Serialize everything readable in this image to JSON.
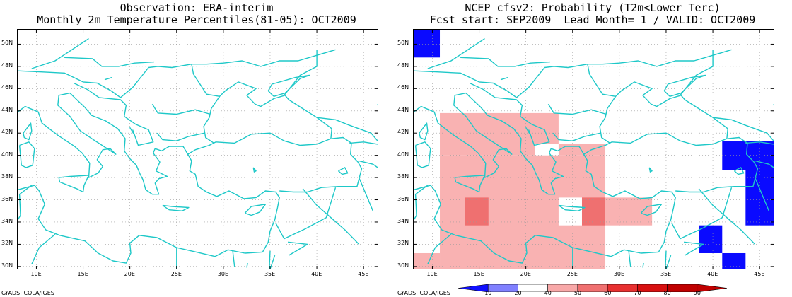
{
  "left_panel": {
    "title_line1": "Observation: ERA-interim",
    "title_line2": "Monthly 2m Temperature Percentiles(81-05): OCT2009",
    "credit": "GrADS: COLA/IGES"
  },
  "right_panel": {
    "title_line1": "NCEP cfsv2: Probability (T2m<Lower Terc)",
    "title_line2": "Fcst start: SEP2009  Lead Month= 1 / VALID: OCT2009",
    "credit": "GrADS: COLA/IGES"
  },
  "lat_ticks": [
    "50N",
    "48N",
    "46N",
    "44N",
    "42N",
    "40N",
    "38N",
    "36N",
    "34N",
    "32N",
    "30N"
  ],
  "lon_ticks": [
    "10E",
    "15E",
    "20E",
    "25E",
    "30E",
    "35E",
    "40E",
    "45E"
  ],
  "colorbar": {
    "labels": [
      "10",
      "20",
      "40",
      "50",
      "60",
      "70",
      "80",
      "90"
    ],
    "colors": [
      "#1010ff",
      "#8080ff",
      "#ffffff",
      "#f8a8a8",
      "#f07070",
      "#e83030",
      "#d81010",
      "#c00000"
    ]
  },
  "colors": {
    "coast": "#1ec8c8",
    "grid": "#9a9a9a",
    "cold_blue": "#0a0aff",
    "pink": "#f9b2b2",
    "red": "#ef7070"
  },
  "map_extent": {
    "lon_min": 8,
    "lon_max": 46.5,
    "lat_min": 29.8,
    "lat_max": 51.3
  },
  "forecast_cells": [
    {
      "lon0": 8,
      "lon1": 10.8,
      "lat0": 48.8,
      "lat1": 51.3,
      "level": "blue"
    },
    {
      "lon0": 10.8,
      "lon1": 23.5,
      "lat0": 40,
      "lat1": 43.8,
      "level": "pink"
    },
    {
      "lon0": 8,
      "lon1": 10.8,
      "lat0": 29.8,
      "lat1": 31.2,
      "level": "pink"
    },
    {
      "lon0": 10.8,
      "lon1": 28.5,
      "lat0": 29.8,
      "lat1": 40,
      "level": "pink"
    },
    {
      "lon0": 23.5,
      "lon1": 28.5,
      "lat0": 40,
      "lat1": 41,
      "level": "pink"
    },
    {
      "lon0": 28.5,
      "lon1": 33.5,
      "lat0": 33.7,
      "lat1": 36.2,
      "level": "pink"
    },
    {
      "lon0": 13.5,
      "lon1": 16,
      "lat0": 33.7,
      "lat1": 36.2,
      "level": "red"
    },
    {
      "lon0": 26,
      "lon1": 28.5,
      "lat0": 33.7,
      "lat1": 36.2,
      "level": "red"
    },
    {
      "lon0": 41,
      "lon1": 46.5,
      "lat0": 38.7,
      "lat1": 41.3,
      "level": "blue"
    },
    {
      "lon0": 43.5,
      "lon1": 46.5,
      "lat0": 33.7,
      "lat1": 38.7,
      "level": "blue"
    },
    {
      "lon0": 38.5,
      "lon1": 41,
      "lat0": 31.2,
      "lat1": 33.7,
      "level": "blue"
    },
    {
      "lon0": 41,
      "lon1": 43.5,
      "lat0": 29.8,
      "lat1": 31.2,
      "level": "blue"
    }
  ],
  "forecast_holes": [
    {
      "lon0": 23.5,
      "lon1": 26,
      "lat0": 33.7,
      "lat1": 36.2
    },
    {
      "lon0": 21,
      "lon1": 23.5,
      "lat0": 40,
      "lat1": 41
    }
  ]
}
